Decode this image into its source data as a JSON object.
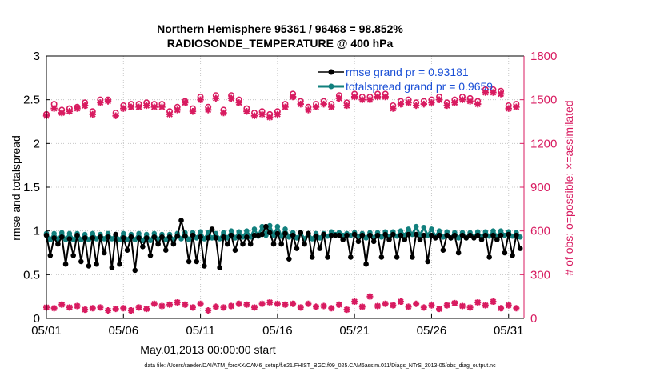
{
  "chart_data": {
    "type": "line",
    "title": "Northern Hemisphere 95361 / 96468 = 98.852%",
    "subtitle": "RADIOSONDE_TEMPERATURE @ 400 hPa",
    "xlabel": "May.01,2013 00:00:00 start",
    "ylabel": "rmse and totalspread",
    "y2label": "# of obs: o=possible; ×=assimilated",
    "xlim": [
      0,
      31
    ],
    "ylim": [
      0,
      3
    ],
    "y2lim": [
      0,
      1800
    ],
    "x_ticks": [
      0,
      5,
      10,
      15,
      20,
      25,
      30
    ],
    "x_tick_labels": [
      "05/01",
      "05/06",
      "05/11",
      "05/16",
      "05/21",
      "05/26",
      "05/31"
    ],
    "y_ticks": [
      0,
      0.5,
      1,
      1.5,
      2,
      2.5,
      3
    ],
    "y_tick_labels": [
      "0",
      "0.5",
      "1",
      "1.5",
      "2",
      "2.5",
      "3"
    ],
    "y2_ticks": [
      0,
      300,
      600,
      900,
      1200,
      1500,
      1800
    ],
    "y2_tick_labels": [
      "0",
      "300",
      "600",
      "900",
      "1200",
      "1500",
      "1800"
    ],
    "legend": [
      {
        "name": "rmse grand pr = 0.93181",
        "color": "#000000"
      },
      {
        "name": "totalspread grand pr = 0.9659",
        "color": "#12807e"
      }
    ],
    "series": [
      {
        "name": "rmse",
        "axis": "left",
        "color": "#000000",
        "marker": "circle",
        "x": [
          0.0,
          0.25,
          0.5,
          0.75,
          1.0,
          1.25,
          1.5,
          1.75,
          2.0,
          2.25,
          2.5,
          2.75,
          3.0,
          3.25,
          3.5,
          3.75,
          4.0,
          4.25,
          4.5,
          4.75,
          5.0,
          5.25,
          5.5,
          5.75,
          6.0,
          6.25,
          6.5,
          6.75,
          7.0,
          7.25,
          7.5,
          7.75,
          8.0,
          8.25,
          8.5,
          8.75,
          9.0,
          9.25,
          9.5,
          9.75,
          10.0,
          10.25,
          10.5,
          10.75,
          11.0,
          11.25,
          11.5,
          11.75,
          12.0,
          12.25,
          12.5,
          12.75,
          13.0,
          13.25,
          13.5,
          13.75,
          14.0,
          14.25,
          14.5,
          14.75,
          15.0,
          15.25,
          15.5,
          15.75,
          16.0,
          16.25,
          16.5,
          16.75,
          17.0,
          17.25,
          17.5,
          17.75,
          18.0,
          18.25,
          18.5,
          18.75,
          19.0,
          19.25,
          19.5,
          19.75,
          20.0,
          20.25,
          20.5,
          20.75,
          21.0,
          21.25,
          21.5,
          21.75,
          22.0,
          22.25,
          22.5,
          22.75,
          23.0,
          23.25,
          23.5,
          23.75,
          24.0,
          24.25,
          24.5,
          24.75,
          25.0,
          25.25,
          25.5,
          25.75,
          26.0,
          26.25,
          26.5,
          26.75,
          27.0,
          27.25,
          27.5,
          27.75,
          28.0,
          28.25,
          28.5,
          28.75,
          29.0,
          29.25,
          29.5,
          29.75,
          30.0,
          30.25,
          30.5,
          30.75
        ],
        "y": [
          0.95,
          0.72,
          0.92,
          0.85,
          0.93,
          0.62,
          0.91,
          0.72,
          0.95,
          0.65,
          0.92,
          0.6,
          0.92,
          0.62,
          0.93,
          0.75,
          0.93,
          0.58,
          0.96,
          0.62,
          0.92,
          0.78,
          0.93,
          0.55,
          0.92,
          0.82,
          0.92,
          0.72,
          0.93,
          0.85,
          0.93,
          0.78,
          0.93,
          0.85,
          0.94,
          1.12,
          0.94,
          0.65,
          0.95,
          0.65,
          0.93,
          0.6,
          0.92,
          1.02,
          0.92,
          0.58,
          0.93,
          0.85,
          0.95,
          0.78,
          0.93,
          0.85,
          0.93,
          0.85,
          0.95,
          0.95,
          0.96,
          1.05,
          0.98,
          0.85,
          0.97,
          0.85,
          0.97,
          0.68,
          0.95,
          0.8,
          0.98,
          0.85,
          0.97,
          0.7,
          0.94,
          0.8,
          0.96,
          0.7,
          0.95,
          0.95,
          0.95,
          0.9,
          0.95,
          0.7,
          0.96,
          0.88,
          0.95,
          0.62,
          0.95,
          0.88,
          0.95,
          0.7,
          0.96,
          0.9,
          0.96,
          0.7,
          0.95,
          0.9,
          0.96,
          0.7,
          0.96,
          0.9,
          0.95,
          0.65,
          0.95,
          0.92,
          0.95,
          0.78,
          0.95,
          0.92,
          0.95,
          0.75,
          0.95,
          0.92,
          0.95,
          0.92,
          0.95,
          0.9,
          0.95,
          0.7,
          0.95,
          0.9,
          0.95,
          0.75,
          0.96,
          0.72,
          0.95,
          0.8
        ]
      },
      {
        "name": "totalspread",
        "axis": "left",
        "color": "#12807e",
        "marker": "circle",
        "x": [
          0.0,
          0.25,
          0.5,
          0.75,
          1.0,
          1.25,
          1.5,
          1.75,
          2.0,
          2.25,
          2.5,
          2.75,
          3.0,
          3.25,
          3.5,
          3.75,
          4.0,
          4.25,
          4.5,
          4.75,
          5.0,
          5.25,
          5.5,
          5.75,
          6.0,
          6.25,
          6.5,
          6.75,
          7.0,
          7.25,
          7.5,
          7.75,
          8.0,
          8.25,
          8.5,
          8.75,
          9.0,
          9.25,
          9.5,
          9.75,
          10.0,
          10.25,
          10.5,
          10.75,
          11.0,
          11.25,
          11.5,
          11.75,
          12.0,
          12.25,
          12.5,
          12.75,
          13.0,
          13.25,
          13.5,
          13.75,
          14.0,
          14.25,
          14.5,
          14.75,
          15.0,
          15.25,
          15.5,
          15.75,
          16.0,
          16.25,
          16.5,
          16.75,
          17.0,
          17.25,
          17.5,
          17.75,
          18.0,
          18.25,
          18.5,
          18.75,
          19.0,
          19.25,
          19.5,
          19.75,
          20.0,
          20.25,
          20.5,
          20.75,
          21.0,
          21.25,
          21.5,
          21.75,
          22.0,
          22.25,
          22.5,
          22.75,
          23.0,
          23.25,
          23.5,
          23.75,
          24.0,
          24.25,
          24.5,
          24.75,
          25.0,
          25.25,
          25.5,
          25.75,
          26.0,
          26.25,
          26.5,
          26.75,
          27.0,
          27.25,
          27.5,
          27.75,
          28.0,
          28.25,
          28.5,
          28.75,
          29.0,
          29.25,
          29.5,
          29.75,
          30.0,
          30.25,
          30.5,
          30.75
        ],
        "y": [
          0.97,
          0.9,
          0.97,
          0.9,
          0.98,
          0.9,
          0.97,
          0.9,
          0.97,
          0.9,
          0.96,
          0.9,
          0.97,
          0.91,
          0.96,
          0.91,
          0.97,
          0.91,
          0.96,
          0.9,
          0.97,
          0.9,
          0.96,
          0.9,
          0.97,
          0.89,
          0.96,
          0.89,
          0.97,
          0.9,
          0.96,
          0.9,
          0.96,
          0.9,
          0.97,
          0.91,
          0.98,
          0.9,
          0.98,
          0.92,
          0.99,
          0.91,
          0.98,
          0.92,
          0.97,
          0.91,
          0.98,
          0.92,
          1.0,
          0.92,
          0.99,
          0.93,
          1.0,
          0.93,
          1.02,
          0.94,
          1.05,
          0.95,
          1.06,
          0.95,
          1.05,
          0.94,
          1.02,
          0.93,
          0.98,
          0.92,
          0.98,
          0.91,
          0.97,
          0.91,
          0.97,
          0.92,
          0.97,
          0.94,
          0.99,
          0.96,
          0.98,
          0.95,
          0.97,
          0.95,
          0.98,
          0.94,
          0.97,
          0.92,
          0.98,
          0.92,
          0.98,
          0.93,
          0.99,
          0.93,
          0.99,
          0.94,
          1.0,
          0.95,
          1.02,
          0.96,
          1.05,
          0.95,
          1.04,
          0.95,
          1.02,
          0.94,
          1.0,
          0.93,
          0.99,
          0.92,
          0.98,
          0.92,
          0.98,
          0.92,
          0.98,
          0.93,
          0.99,
          0.93,
          0.99,
          0.94,
          1.0,
          0.94,
          1.0,
          0.95,
          0.99,
          0.94,
          0.98,
          0.93
        ]
      },
      {
        "name": "possible obs (upper)",
        "axis": "right",
        "color": "#d81b60",
        "marker": "o",
        "x": [
          0,
          0.5,
          1,
          1.5,
          2,
          2.5,
          3,
          3.5,
          4,
          4.5,
          5,
          5.5,
          6,
          6.5,
          7,
          7.5,
          8,
          8.5,
          9,
          9.5,
          10,
          10.5,
          11,
          11.5,
          12,
          12.5,
          13,
          13.5,
          14,
          14.5,
          15,
          15.5,
          16,
          16.5,
          17,
          17.5,
          18,
          18.5,
          19,
          19.5,
          20,
          20.5,
          21,
          21.5,
          22,
          22.5,
          23,
          23.5,
          24,
          24.5,
          25,
          25.5,
          26,
          26.5,
          27,
          27.5,
          28,
          28.5,
          29,
          29.5,
          30,
          30.5
        ],
        "y": [
          1400,
          1470,
          1430,
          1440,
          1450,
          1480,
          1420,
          1500,
          1500,
          1410,
          1460,
          1470,
          1470,
          1480,
          1470,
          1470,
          1420,
          1450,
          1490,
          1440,
          1520,
          1450,
          1530,
          1430,
          1530,
          1500,
          1440,
          1410,
          1420,
          1400,
          1420,
          1470,
          1540,
          1490,
          1450,
          1470,
          1490,
          1470,
          1530,
          1480,
          1540,
          1520,
          1520,
          1540,
          1540,
          1460,
          1490,
          1500,
          1480,
          1490,
          1500,
          1520,
          1480,
          1500,
          1520,
          1510,
          1490,
          1570,
          1570,
          1560,
          1460,
          1470
        ]
      },
      {
        "name": "assimilated obs (upper)",
        "axis": "right",
        "color": "#d81b60",
        "marker": "x",
        "x": [
          0,
          0.5,
          1,
          1.5,
          2,
          2.5,
          3,
          3.5,
          4,
          4.5,
          5,
          5.5,
          6,
          6.5,
          7,
          7.5,
          8,
          8.5,
          9,
          9.5,
          10,
          10.5,
          11,
          11.5,
          12,
          12.5,
          13,
          13.5,
          14,
          14.5,
          15,
          15.5,
          16,
          16.5,
          17,
          17.5,
          18,
          18.5,
          19,
          19.5,
          20,
          20.5,
          21,
          21.5,
          22,
          22.5,
          23,
          23.5,
          24,
          24.5,
          25,
          25.5,
          26,
          26.5,
          27,
          27.5,
          28,
          28.5,
          29,
          29.5,
          30,
          30.5
        ],
        "y": [
          1390,
          1440,
          1410,
          1420,
          1440,
          1460,
          1400,
          1480,
          1490,
          1390,
          1440,
          1450,
          1450,
          1460,
          1450,
          1450,
          1400,
          1430,
          1480,
          1420,
          1500,
          1430,
          1510,
          1410,
          1510,
          1480,
          1420,
          1390,
          1400,
          1380,
          1400,
          1450,
          1520,
          1470,
          1430,
          1450,
          1470,
          1450,
          1510,
          1460,
          1520,
          1500,
          1500,
          1520,
          1520,
          1440,
          1470,
          1480,
          1460,
          1470,
          1480,
          1500,
          1460,
          1480,
          1500,
          1490,
          1470,
          1550,
          1550,
          1540,
          1440,
          1450
        ]
      },
      {
        "name": "assimilated obs (lower)",
        "axis": "right",
        "color": "#d81b60",
        "marker": "plus",
        "x": [
          0,
          0.5,
          1,
          1.5,
          2,
          2.5,
          3,
          3.5,
          4,
          4.5,
          5,
          5.5,
          6,
          6.5,
          7,
          7.5,
          8,
          8.5,
          9,
          9.5,
          10,
          10.5,
          11,
          11.5,
          12,
          12.5,
          13,
          13.5,
          14,
          14.5,
          15,
          15.5,
          16,
          16.5,
          17,
          17.5,
          18,
          18.5,
          19,
          19.5,
          20,
          20.5,
          21,
          21.5,
          22,
          22.5,
          23,
          23.5,
          24,
          24.5,
          25,
          25.5,
          26,
          26.5,
          27,
          27.5,
          28,
          28.5,
          29,
          29.5,
          30,
          30.5
        ],
        "y": [
          75,
          70,
          95,
          75,
          85,
          60,
          70,
          75,
          55,
          65,
          70,
          55,
          75,
          65,
          100,
          85,
          95,
          110,
          95,
          75,
          100,
          55,
          80,
          75,
          85,
          100,
          95,
          75,
          100,
          110,
          100,
          95,
          100,
          75,
          100,
          80,
          85,
          70,
          95,
          60,
          115,
          80,
          150,
          85,
          100,
          90,
          115,
          80,
          100,
          75,
          90,
          65,
          90,
          105,
          85,
          75,
          110,
          90,
          115,
          70,
          90,
          70
        ]
      }
    ]
  },
  "footer": {
    "note": "data file: /Users/raeder/DAI/ATM_forcXX/CAM6_setup/f.e21.FHIST_BGC.f09_025.CAM6assim.011/Diags_NTrS_2013-05/obs_diag_output.nc"
  }
}
